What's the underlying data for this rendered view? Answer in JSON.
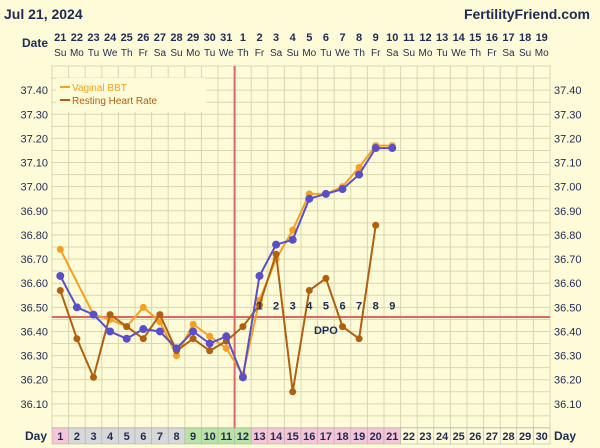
{
  "header": {
    "date": "Jul 21, 2024",
    "site": "FertilityFriend.com",
    "date_label": "Date",
    "day_label": "Day"
  },
  "calendar": {
    "dates": [
      "21",
      "22",
      "23",
      "24",
      "25",
      "26",
      "27",
      "28",
      "29",
      "30",
      "31",
      "1",
      "2",
      "3",
      "4",
      "5",
      "6",
      "7",
      "8",
      "9",
      "10",
      "11",
      "12",
      "13",
      "14",
      "15",
      "16",
      "17",
      "18",
      "19"
    ],
    "weekdays": [
      "Su",
      "Mo",
      "Tu",
      "We",
      "Th",
      "Fr",
      "Sa",
      "Su",
      "Mo",
      "Tu",
      "We",
      "Th",
      "Fr",
      "Sa",
      "Su",
      "Mo",
      "Tu",
      "We",
      "Th",
      "Fr",
      "Sa",
      "Su",
      "Mo",
      "Tu",
      "We",
      "Th",
      "Fr",
      "Sa",
      "Su",
      "Mo"
    ],
    "cycle_days": [
      "1",
      "2",
      "3",
      "4",
      "5",
      "6",
      "7",
      "8",
      "9",
      "10",
      "11",
      "12",
      "13",
      "14",
      "15",
      "16",
      "17",
      "18",
      "19",
      "20",
      "21",
      "22",
      "23",
      "24",
      "25",
      "26",
      "27",
      "28",
      "29",
      "30"
    ]
  },
  "colors": {
    "background": "#fefcd8",
    "grid": "#d9d6b0",
    "bbt": "#f5a023",
    "rhr": "#b0600e",
    "combined": "#5b4fc9",
    "coverline": "#e06666",
    "ovulation": "#e06666",
    "text": "#1f2a55",
    "cell_pink": "#f6c5d6",
    "cell_green": "#b9e3a4",
    "cell_gray": "#d8d8d8"
  },
  "chart_data": {
    "type": "line",
    "title": "",
    "xlabel": "Day",
    "ylabel": "",
    "ylim": [
      36.0,
      37.5
    ],
    "yticks": [
      "37.40",
      "37.30",
      "37.20",
      "37.10",
      "37.00",
      "36.90",
      "36.80",
      "36.70",
      "36.60",
      "36.50",
      "36.40",
      "36.30",
      "36.20",
      "36.10"
    ],
    "x": [
      1,
      2,
      3,
      4,
      5,
      6,
      7,
      8,
      9,
      10,
      11,
      12,
      13,
      14,
      15,
      16,
      17,
      18,
      19,
      20,
      21
    ],
    "legend": [
      "Vaginal BBT",
      "Resting Heart Rate"
    ],
    "legend_position": "top-left",
    "grid": true,
    "series": [
      {
        "name": "Vaginal BBT",
        "color_key": "bbt",
        "values": [
          36.74,
          null,
          36.47,
          36.45,
          36.42,
          36.5,
          36.44,
          36.3,
          36.43,
          36.38,
          36.33,
          36.22,
          36.53,
          36.7,
          36.82,
          36.97,
          36.97,
          37.0,
          37.08,
          37.17,
          37.17
        ]
      },
      {
        "name": "Resting Heart Rate",
        "color_key": "rhr",
        "values": [
          36.57,
          36.37,
          36.21,
          36.47,
          36.42,
          36.37,
          36.47,
          36.32,
          36.37,
          36.32,
          36.36,
          36.42,
          36.51,
          36.72,
          36.15,
          36.57,
          36.62,
          36.42,
          36.37,
          36.84,
          null
        ]
      },
      {
        "name": "",
        "color_key": "combined",
        "values": [
          36.63,
          36.5,
          36.47,
          36.4,
          36.37,
          36.41,
          36.4,
          36.33,
          36.4,
          36.35,
          36.38,
          36.21,
          36.63,
          36.76,
          36.78,
          36.95,
          36.97,
          36.99,
          37.05,
          37.16,
          37.16
        ]
      }
    ],
    "coverline": 36.46,
    "ovulation_day": 12,
    "dpo": {
      "label": "DPO",
      "numbers": [
        "1",
        "2",
        "3",
        "4",
        "5",
        "6",
        "7",
        "8",
        "9"
      ],
      "start_day": 13
    }
  }
}
